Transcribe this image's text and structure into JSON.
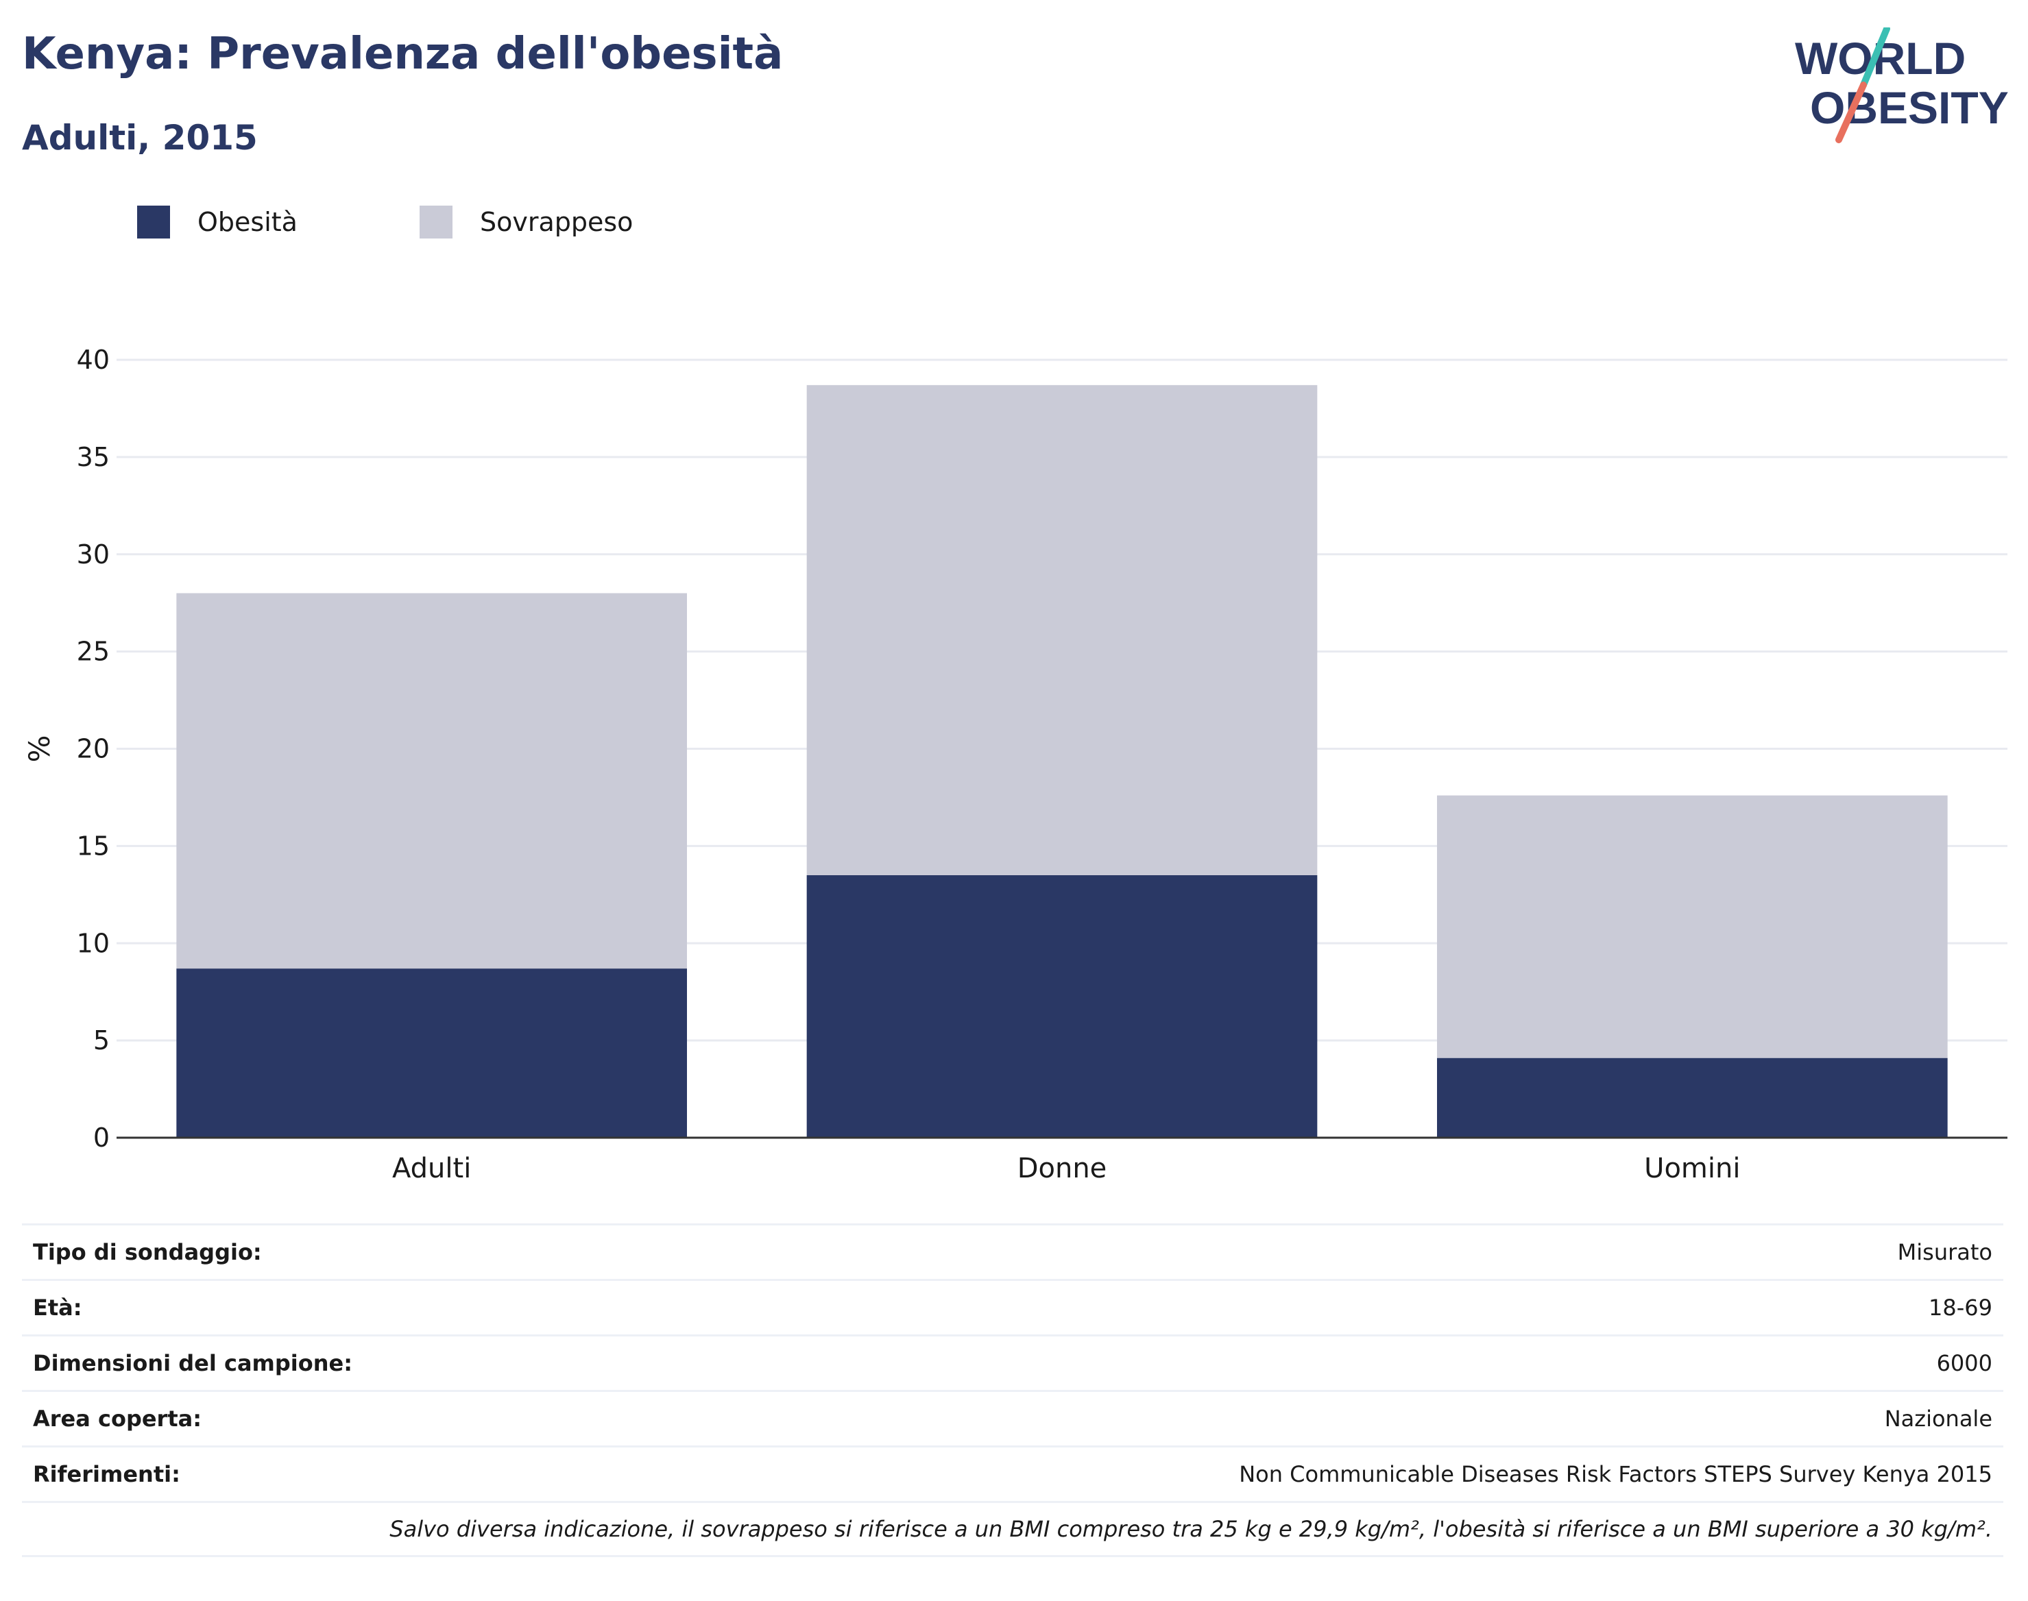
{
  "header": {
    "title": "Kenya: Prevalenza dell'obesità",
    "subtitle": "Adulti, 2015"
  },
  "logo": {
    "line1": "WORLD",
    "line2": "OBESITY",
    "colors": {
      "text": "#2a3865",
      "accent_teal": "#3bbfb3",
      "accent_red": "#e8705e"
    }
  },
  "legend": {
    "items": [
      {
        "label": "Obesità",
        "color": "#2a3865"
      },
      {
        "label": "Sovrappeso",
        "color": "#cacbd7"
      }
    ]
  },
  "chart_data": {
    "type": "bar",
    "stacked": true,
    "categories": [
      "Adulti",
      "Donne",
      "Uomini"
    ],
    "series": [
      {
        "name": "Obesità",
        "color": "#2a3865",
        "values": [
          8.7,
          13.5,
          4.1
        ]
      },
      {
        "name": "Sovrappeso",
        "color": "#cacbd7",
        "values": [
          19.3,
          25.2,
          13.5
        ]
      }
    ],
    "ylabel": "%",
    "ylim": [
      0,
      40
    ],
    "yticks": [
      0,
      5,
      10,
      15,
      20,
      25,
      30,
      35,
      40
    ],
    "grid": true
  },
  "info": {
    "rows": [
      {
        "label": "Tipo di sondaggio:",
        "value": "Misurato"
      },
      {
        "label": "Età:",
        "value": "18-69"
      },
      {
        "label": "Dimensioni del campione:",
        "value": "6000"
      },
      {
        "label": "Area coperta:",
        "value": "Nazionale"
      },
      {
        "label": "Riferimenti:",
        "value": "Non Communicable Diseases Risk Factors STEPS Survey Kenya 2015"
      }
    ],
    "note": "Salvo diversa indicazione, il sovrappeso si riferisce a un BMI compreso tra 25 kg e 29,9 kg/m², l'obesità si riferisce a un BMI superiore a 30 kg/m²."
  }
}
